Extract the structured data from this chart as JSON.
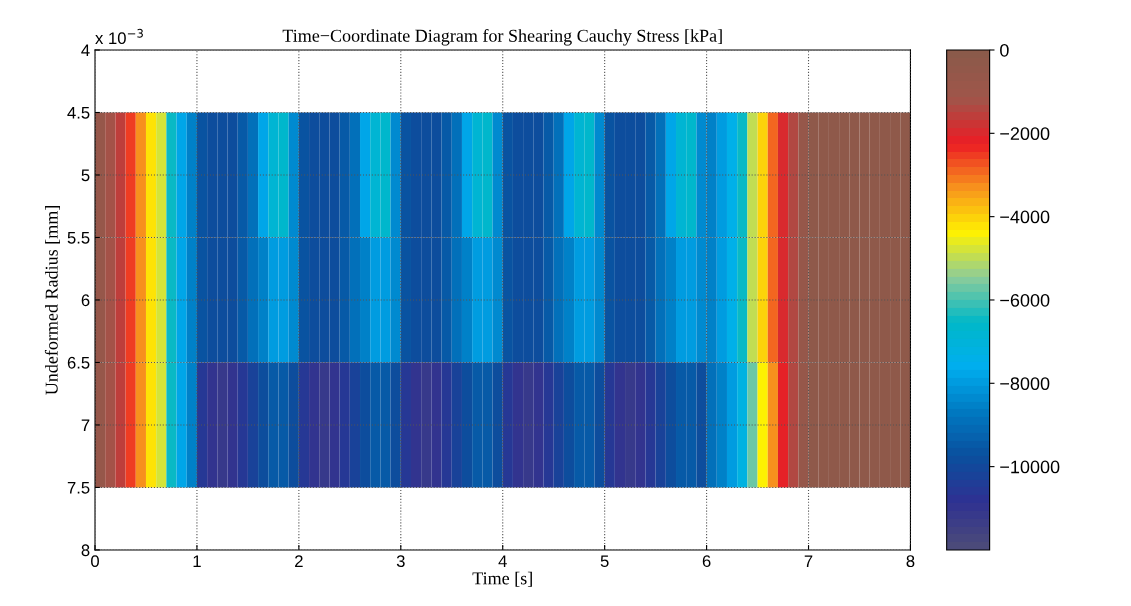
{
  "chart_data": {
    "type": "heatmap",
    "title": "Time−Coordinate Diagram for Shearing Cauchy Stress [kPa]",
    "xlabel": "Time [s]",
    "ylabel": "Undeformed Radius [mm]",
    "annotations": [
      "x 10$^{−3}$"
    ],
    "x": [
      0.05,
      0.15,
      0.25,
      0.35,
      0.45,
      0.55,
      0.65,
      0.75,
      0.85,
      0.95,
      1.05,
      1.15,
      1.25,
      1.35,
      1.45,
      1.55,
      1.65,
      1.75,
      1.85,
      1.95,
      2.05,
      2.15,
      2.25,
      2.35,
      2.45,
      2.55,
      2.65,
      2.75,
      2.85,
      2.95,
      3.05,
      3.15,
      3.25,
      3.35,
      3.45,
      3.55,
      3.65,
      3.75,
      3.85,
      3.95,
      4.05,
      4.15,
      4.25,
      4.35,
      4.45,
      4.55,
      4.65,
      4.75,
      4.85,
      4.95,
      5.05,
      5.15,
      5.25,
      5.35,
      5.45,
      5.55,
      5.65,
      5.75,
      5.85,
      5.95,
      6.05,
      6.15,
      6.25,
      6.35,
      6.45,
      6.55,
      6.65,
      6.75,
      6.85,
      6.95,
      7.05,
      7.15,
      7.25,
      7.35,
      7.45,
      7.55,
      7.65,
      7.75,
      7.85,
      7.95
    ],
    "y": [
      5,
      6,
      7
    ],
    "cells": [
      [
        -600,
        -1200,
        -1600,
        -2500,
        -3200,
        -4200,
        -4800,
        -6500,
        -7800,
        -8500,
        -9600,
        -9800,
        -9900,
        -9800,
        -9500,
        -9000,
        -7800,
        -6800,
        -6600,
        -8400,
        -9600,
        -9800,
        -9900,
        -9800,
        -9500,
        -9000,
        -7800,
        -6800,
        -6600,
        -8400,
        -9600,
        -9800,
        -9900,
        -9800,
        -9500,
        -9000,
        -7800,
        -6800,
        -6600,
        -8400,
        -9600,
        -9800,
        -9900,
        -9800,
        -9500,
        -9000,
        -7800,
        -6800,
        -6600,
        -8400,
        -9600,
        -9800,
        -9900,
        -9800,
        -9500,
        -9000,
        -7800,
        -6800,
        -6600,
        -8400,
        -8500,
        -8000,
        -7500,
        -6500,
        -5000,
        -4000,
        -3000,
        -2000,
        -1400,
        -600,
        -200,
        -200,
        -200,
        -200,
        -200,
        -200,
        -200,
        -200,
        -200,
        -200
      ],
      [
        -600,
        -1200,
        -1600,
        -2500,
        -3200,
        -4200,
        -4800,
        -6500,
        -7800,
        -8500,
        -9600,
        -9800,
        -9900,
        -9800,
        -9500,
        -9000,
        -8500,
        -8000,
        -7900,
        -8400,
        -9600,
        -9800,
        -9900,
        -9800,
        -9500,
        -9000,
        -8500,
        -8000,
        -7900,
        -8400,
        -9600,
        -9800,
        -9900,
        -9800,
        -9500,
        -9000,
        -8500,
        -8000,
        -7900,
        -8400,
        -9600,
        -9800,
        -9900,
        -9800,
        -9500,
        -9000,
        -8500,
        -8000,
        -7900,
        -8400,
        -9600,
        -9800,
        -9900,
        -9800,
        -9500,
        -9000,
        -8500,
        -8000,
        -7900,
        -8400,
        -8500,
        -8000,
        -7500,
        -6500,
        -5000,
        -4000,
        -3000,
        -2000,
        -1400,
        -600,
        -200,
        -200,
        -200,
        -200,
        -200,
        -200,
        -200,
        -200,
        -200,
        -200
      ],
      [
        -600,
        -1200,
        -1600,
        -2500,
        -3200,
        -4200,
        -4800,
        -6500,
        -7800,
        -8500,
        -10600,
        -11000,
        -11200,
        -11000,
        -10600,
        -10200,
        -9800,
        -9500,
        -9400,
        -9800,
        -10600,
        -11000,
        -11200,
        -11000,
        -10600,
        -10200,
        -9800,
        -9500,
        -9400,
        -9800,
        -10600,
        -11000,
        -11200,
        -11000,
        -10600,
        -10200,
        -9800,
        -9500,
        -9400,
        -9800,
        -10600,
        -11000,
        -11200,
        -11000,
        -10600,
        -10200,
        -9800,
        -9500,
        -9400,
        -9800,
        -10600,
        -11000,
        -11200,
        -11000,
        -10600,
        -10200,
        -9800,
        -9500,
        -9400,
        -9800,
        -9000,
        -8600,
        -8000,
        -7200,
        -5800,
        -4500,
        -3300,
        -2200,
        -1500,
        -700,
        -200,
        -200,
        -200,
        -200,
        -200,
        -200,
        -200,
        -200,
        -200,
        -200
      ]
    ],
    "clim": [
      -12000,
      0
    ],
    "cticks": [
      0,
      -2000,
      -4000,
      -6000,
      -8000,
      -10000
    ],
    "xlim": [
      0,
      8
    ],
    "ylim": [
      8,
      4
    ],
    "xticks": [
      0,
      1,
      2,
      3,
      4,
      5,
      6,
      7,
      8
    ],
    "yticks": [
      4,
      4.5,
      5,
      5.5,
      6,
      6.5,
      7,
      7.5,
      8
    ],
    "grid": true
  }
}
